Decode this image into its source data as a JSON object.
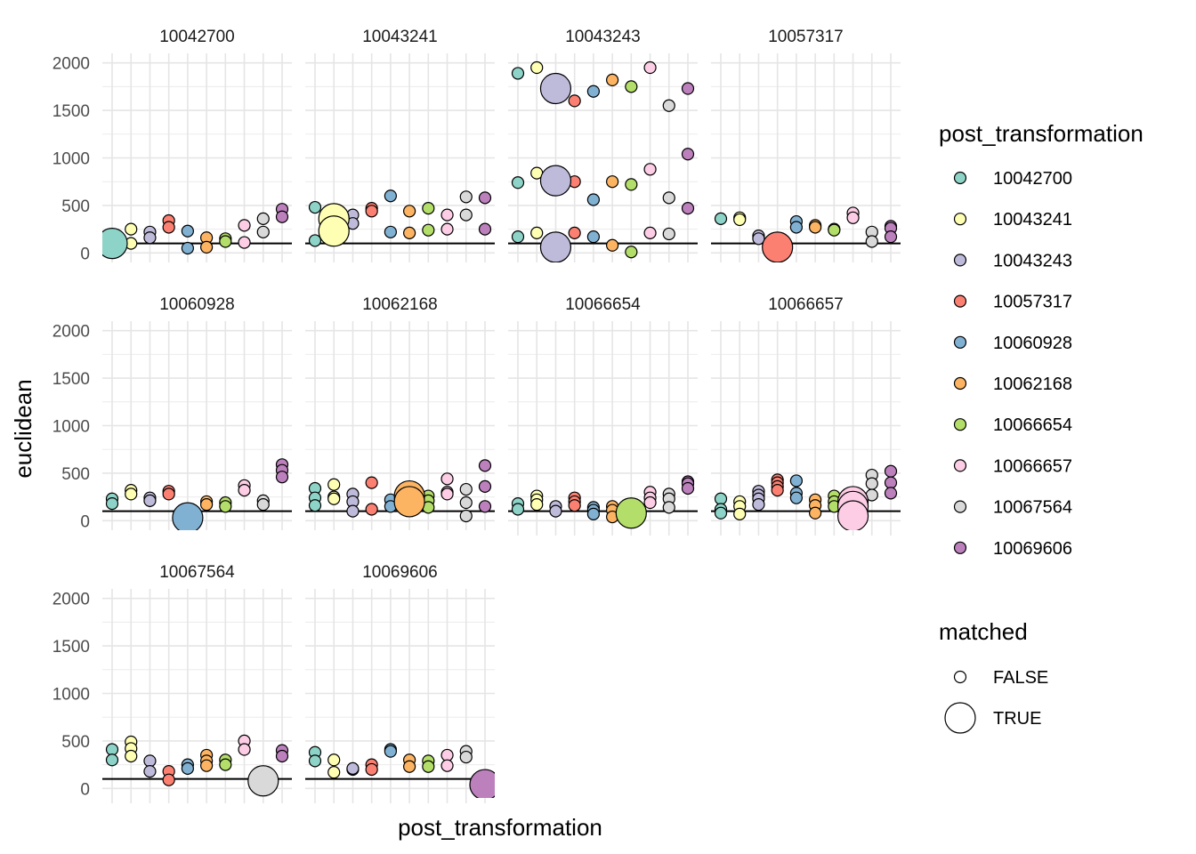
{
  "chart_data": {
    "type": "scatter",
    "title": "",
    "xlabel": "post_transformation",
    "ylabel": "euclidean",
    "ylim": [
      -100,
      2100
    ],
    "y_ticks": [
      0,
      500,
      1000,
      1500,
      2000
    ],
    "hline": 100,
    "grid": true,
    "legend_position": "right",
    "facet_order": [
      "10042700",
      "10043241",
      "10043243",
      "10057317",
      "10060928",
      "10062168",
      "10066654",
      "10066657",
      "10067564",
      "10069606"
    ],
    "x_categories": [
      "10042700",
      "10043241",
      "10043243",
      "10057317",
      "10060928",
      "10062168",
      "10066654",
      "10066657",
      "10067564",
      "10069606"
    ],
    "colors": {
      "10042700": "#8DD3C7",
      "10043241": "#FFFFB3",
      "10043243": "#BEBADA",
      "10057317": "#FB8072",
      "10060928": "#80B1D3",
      "10062168": "#FDB462",
      "10066654": "#B3DE69",
      "10066657": "#FCCDE5",
      "10067564": "#D9D9D9",
      "10069606": "#BC80BD"
    },
    "legend": {
      "color_title": "post_transformation",
      "color_items": [
        "10042700",
        "10043241",
        "10043243",
        "10057317",
        "10060928",
        "10062168",
        "10066654",
        "10066657",
        "10067564",
        "10069606"
      ],
      "size_title": "matched",
      "size_items": [
        "FALSE",
        "TRUE"
      ]
    },
    "panels": [
      {
        "label": "10042700",
        "points": [
          [
            0,
            100,
            true
          ],
          [
            1,
            250,
            false
          ],
          [
            1,
            100,
            false
          ],
          [
            2,
            220,
            false
          ],
          [
            2,
            160,
            false
          ],
          [
            3,
            340,
            false
          ],
          [
            3,
            270,
            false
          ],
          [
            4,
            230,
            false
          ],
          [
            4,
            50,
            false
          ],
          [
            5,
            160,
            false
          ],
          [
            5,
            60,
            false
          ],
          [
            6,
            150,
            false
          ],
          [
            6,
            120,
            false
          ],
          [
            7,
            290,
            false
          ],
          [
            7,
            110,
            false
          ],
          [
            8,
            360,
            false
          ],
          [
            8,
            220,
            false
          ],
          [
            9,
            460,
            false
          ],
          [
            9,
            380,
            false
          ]
        ]
      },
      {
        "label": "10043241",
        "points": [
          [
            0,
            480,
            false
          ],
          [
            0,
            130,
            false
          ],
          [
            1,
            360,
            true
          ],
          [
            1,
            230,
            true
          ],
          [
            2,
            400,
            false
          ],
          [
            2,
            310,
            false
          ],
          [
            3,
            470,
            false
          ],
          [
            3,
            440,
            false
          ],
          [
            4,
            600,
            false
          ],
          [
            4,
            220,
            false
          ],
          [
            5,
            440,
            false
          ],
          [
            5,
            210,
            false
          ],
          [
            6,
            470,
            false
          ],
          [
            6,
            240,
            false
          ],
          [
            7,
            400,
            false
          ],
          [
            7,
            250,
            false
          ],
          [
            8,
            590,
            false
          ],
          [
            8,
            400,
            false
          ],
          [
            9,
            580,
            false
          ],
          [
            9,
            250,
            false
          ]
        ]
      },
      {
        "label": "10043243",
        "points": [
          [
            0,
            1890,
            false
          ],
          [
            0,
            740,
            false
          ],
          [
            0,
            170,
            false
          ],
          [
            1,
            1950,
            false
          ],
          [
            1,
            840,
            false
          ],
          [
            1,
            210,
            false
          ],
          [
            2,
            1730,
            true
          ],
          [
            2,
            760,
            true
          ],
          [
            2,
            60,
            true
          ],
          [
            3,
            1600,
            false
          ],
          [
            3,
            750,
            false
          ],
          [
            3,
            210,
            false
          ],
          [
            4,
            1700,
            false
          ],
          [
            4,
            560,
            false
          ],
          [
            4,
            170,
            false
          ],
          [
            5,
            1820,
            false
          ],
          [
            5,
            750,
            false
          ],
          [
            5,
            80,
            false
          ],
          [
            6,
            1750,
            false
          ],
          [
            6,
            720,
            false
          ],
          [
            6,
            10,
            false
          ],
          [
            7,
            1950,
            false
          ],
          [
            7,
            880,
            false
          ],
          [
            7,
            210,
            false
          ],
          [
            8,
            1550,
            false
          ],
          [
            8,
            580,
            false
          ],
          [
            8,
            200,
            false
          ],
          [
            9,
            1730,
            false
          ],
          [
            9,
            1040,
            false
          ],
          [
            9,
            470,
            false
          ]
        ]
      },
      {
        "label": "10057317",
        "points": [
          [
            0,
            360,
            false
          ],
          [
            1,
            370,
            false
          ],
          [
            1,
            350,
            false
          ],
          [
            2,
            180,
            false
          ],
          [
            2,
            150,
            false
          ],
          [
            3,
            60,
            true
          ],
          [
            4,
            330,
            false
          ],
          [
            4,
            270,
            false
          ],
          [
            5,
            290,
            false
          ],
          [
            5,
            270,
            false
          ],
          [
            6,
            250,
            false
          ],
          [
            6,
            240,
            false
          ],
          [
            7,
            420,
            false
          ],
          [
            7,
            370,
            false
          ],
          [
            8,
            220,
            false
          ],
          [
            8,
            120,
            false
          ],
          [
            9,
            280,
            false
          ],
          [
            9,
            260,
            false
          ],
          [
            9,
            170,
            false
          ]
        ]
      },
      {
        "label": "10060928",
        "points": [
          [
            0,
            230,
            false
          ],
          [
            0,
            180,
            false
          ],
          [
            1,
            320,
            false
          ],
          [
            1,
            280,
            false
          ],
          [
            2,
            240,
            false
          ],
          [
            2,
            210,
            false
          ],
          [
            3,
            310,
            false
          ],
          [
            3,
            280,
            false
          ],
          [
            4,
            30,
            true
          ],
          [
            5,
            200,
            false
          ],
          [
            5,
            170,
            false
          ],
          [
            6,
            190,
            false
          ],
          [
            6,
            150,
            false
          ],
          [
            7,
            370,
            false
          ],
          [
            7,
            320,
            false
          ],
          [
            8,
            210,
            false
          ],
          [
            8,
            170,
            false
          ],
          [
            9,
            590,
            false
          ],
          [
            9,
            530,
            false
          ],
          [
            9,
            460,
            false
          ]
        ]
      },
      {
        "label": "10062168",
        "points": [
          [
            0,
            340,
            false
          ],
          [
            0,
            240,
            false
          ],
          [
            0,
            160,
            false
          ],
          [
            1,
            380,
            false
          ],
          [
            1,
            250,
            false
          ],
          [
            1,
            230,
            false
          ],
          [
            2,
            280,
            false
          ],
          [
            2,
            200,
            false
          ],
          [
            2,
            100,
            false
          ],
          [
            3,
            400,
            false
          ],
          [
            3,
            120,
            false
          ],
          [
            4,
            220,
            false
          ],
          [
            4,
            150,
            false
          ],
          [
            5,
            260,
            true
          ],
          [
            5,
            200,
            true
          ],
          [
            6,
            260,
            false
          ],
          [
            6,
            210,
            false
          ],
          [
            6,
            140,
            false
          ],
          [
            7,
            440,
            false
          ],
          [
            7,
            300,
            false
          ],
          [
            7,
            280,
            false
          ],
          [
            8,
            330,
            false
          ],
          [
            8,
            190,
            false
          ],
          [
            8,
            50,
            false
          ],
          [
            9,
            580,
            false
          ],
          [
            9,
            360,
            false
          ],
          [
            9,
            150,
            false
          ]
        ]
      },
      {
        "label": "10066654",
        "points": [
          [
            0,
            180,
            false
          ],
          [
            0,
            120,
            false
          ],
          [
            1,
            260,
            false
          ],
          [
            1,
            220,
            false
          ],
          [
            1,
            170,
            false
          ],
          [
            2,
            150,
            false
          ],
          [
            2,
            100,
            false
          ],
          [
            3,
            240,
            false
          ],
          [
            3,
            200,
            false
          ],
          [
            3,
            160,
            false
          ],
          [
            4,
            140,
            false
          ],
          [
            4,
            110,
            false
          ],
          [
            4,
            70,
            false
          ],
          [
            5,
            150,
            false
          ],
          [
            5,
            110,
            false
          ],
          [
            5,
            40,
            false
          ],
          [
            6,
            80,
            true
          ],
          [
            7,
            300,
            false
          ],
          [
            7,
            240,
            false
          ],
          [
            7,
            190,
            false
          ],
          [
            8,
            280,
            false
          ],
          [
            8,
            230,
            false
          ],
          [
            8,
            140,
            false
          ],
          [
            9,
            410,
            false
          ],
          [
            9,
            390,
            false
          ],
          [
            9,
            340,
            false
          ]
        ]
      },
      {
        "label": "10066657",
        "points": [
          [
            0,
            230,
            false
          ],
          [
            0,
            120,
            false
          ],
          [
            0,
            80,
            false
          ],
          [
            1,
            200,
            false
          ],
          [
            1,
            150,
            false
          ],
          [
            1,
            70,
            false
          ],
          [
            2,
            310,
            false
          ],
          [
            2,
            270,
            false
          ],
          [
            2,
            230,
            false
          ],
          [
            2,
            170,
            false
          ],
          [
            3,
            430,
            false
          ],
          [
            3,
            400,
            false
          ],
          [
            3,
            360,
            false
          ],
          [
            3,
            320,
            false
          ],
          [
            4,
            420,
            false
          ],
          [
            4,
            290,
            false
          ],
          [
            4,
            240,
            false
          ],
          [
            5,
            220,
            false
          ],
          [
            5,
            160,
            false
          ],
          [
            5,
            80,
            false
          ],
          [
            6,
            260,
            false
          ],
          [
            6,
            200,
            false
          ],
          [
            6,
            150,
            false
          ],
          [
            7,
            200,
            true
          ],
          [
            7,
            150,
            true
          ],
          [
            7,
            50,
            true
          ],
          [
            8,
            480,
            false
          ],
          [
            8,
            390,
            false
          ],
          [
            8,
            270,
            false
          ],
          [
            9,
            520,
            false
          ],
          [
            9,
            400,
            false
          ],
          [
            9,
            290,
            false
          ]
        ]
      },
      {
        "label": "10067564",
        "points": [
          [
            0,
            410,
            false
          ],
          [
            0,
            300,
            false
          ],
          [
            1,
            490,
            false
          ],
          [
            1,
            420,
            false
          ],
          [
            1,
            340,
            false
          ],
          [
            2,
            290,
            false
          ],
          [
            2,
            180,
            false
          ],
          [
            3,
            180,
            false
          ],
          [
            3,
            90,
            false
          ],
          [
            4,
            250,
            false
          ],
          [
            4,
            210,
            false
          ],
          [
            5,
            350,
            false
          ],
          [
            5,
            290,
            false
          ],
          [
            5,
            240,
            false
          ],
          [
            6,
            300,
            false
          ],
          [
            6,
            250,
            false
          ],
          [
            7,
            500,
            false
          ],
          [
            7,
            410,
            false
          ],
          [
            8,
            80,
            true
          ],
          [
            9,
            400,
            false
          ],
          [
            9,
            340,
            false
          ]
        ]
      },
      {
        "label": "10069606",
        "points": [
          [
            0,
            380,
            false
          ],
          [
            0,
            290,
            false
          ],
          [
            1,
            300,
            false
          ],
          [
            1,
            170,
            false
          ],
          [
            2,
            200,
            false
          ],
          [
            2,
            210,
            false
          ],
          [
            3,
            250,
            false
          ],
          [
            3,
            200,
            false
          ],
          [
            4,
            410,
            false
          ],
          [
            4,
            390,
            false
          ],
          [
            5,
            300,
            false
          ],
          [
            5,
            230,
            false
          ],
          [
            6,
            290,
            false
          ],
          [
            6,
            230,
            false
          ],
          [
            7,
            350,
            false
          ],
          [
            7,
            240,
            false
          ],
          [
            8,
            390,
            false
          ],
          [
            8,
            330,
            false
          ],
          [
            9,
            40,
            true
          ]
        ]
      }
    ]
  }
}
